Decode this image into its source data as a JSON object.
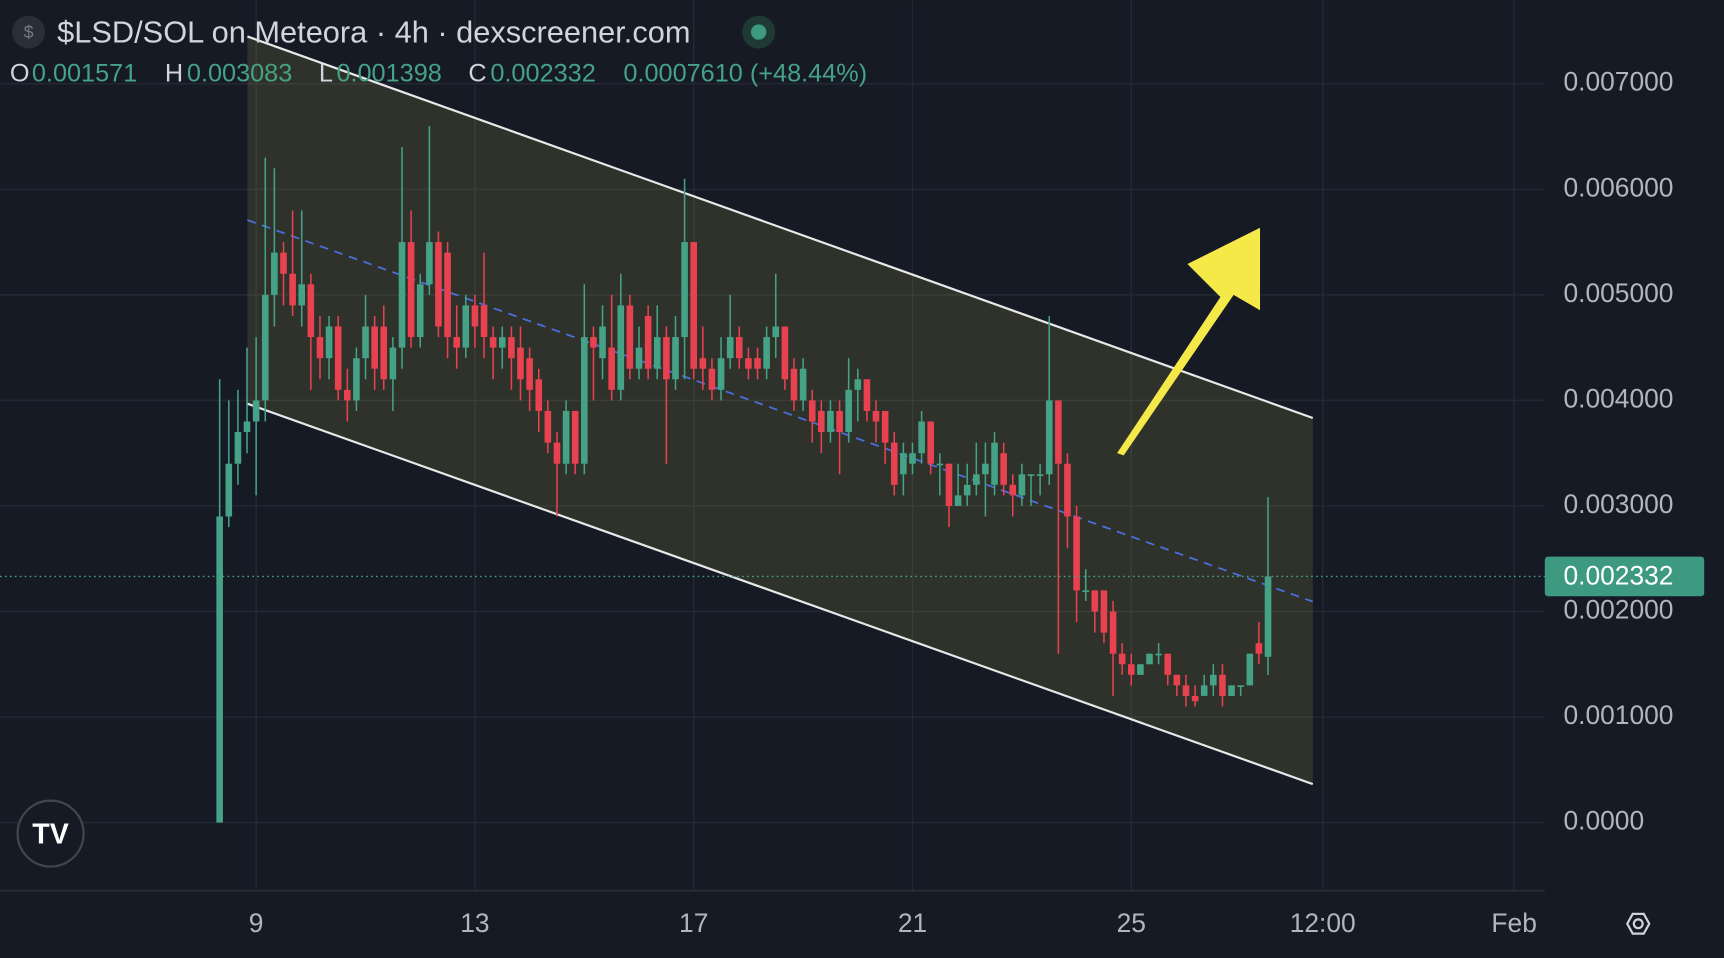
{
  "chart_data": {
    "type": "candlestick",
    "title": "$LSD/SOL on Meteora · 4h · dexscreener.com",
    "ohlc_labels": [
      "O",
      "H",
      "L",
      "C"
    ],
    "change_label": "0.0007610 (+48.44%)",
    "up_color": "#45a287",
    "down_color": "#e8414f",
    "grid": true,
    "xlim": [
      4.317,
      32.56
    ],
    "xticks": [
      9,
      13,
      17,
      21,
      25,
      {
        "value": 28.5,
        "label": "12:00"
      },
      {
        "value": 32,
        "label": "Feb"
      }
    ],
    "ylim": [
      -0.000646,
      0.007792
    ],
    "yticks": [
      {
        "value": 0,
        "label": "0.0000"
      },
      {
        "value": 0.001,
        "label": "0.001000"
      },
      {
        "value": 0.002,
        "label": "0.002000"
      },
      {
        "value": 0.003,
        "label": "0.003000"
      },
      {
        "value": 0.004,
        "label": "0.004000"
      },
      {
        "value": 0.005,
        "label": "0.005000"
      },
      {
        "value": 0.006,
        "label": "0.006000"
      },
      {
        "value": 0.007,
        "label": "0.007000"
      }
    ],
    "x": [
      8.333,
      8.5,
      8.667,
      8.833,
      9,
      9.167,
      9.333,
      9.5,
      9.667,
      9.833,
      10,
      10.167,
      10.333,
      10.5,
      10.667,
      10.833,
      11,
      11.167,
      11.333,
      11.5,
      11.667,
      11.833,
      12,
      12.167,
      12.333,
      12.5,
      12.667,
      12.833,
      13,
      13.167,
      13.333,
      13.5,
      13.667,
      13.833,
      14,
      14.167,
      14.333,
      14.5,
      14.667,
      14.833,
      15,
      15.167,
      15.333,
      15.5,
      15.667,
      15.833,
      16,
      16.167,
      16.333,
      16.5,
      16.667,
      16.833,
      17,
      17.167,
      17.333,
      17.5,
      17.667,
      17.833,
      18,
      18.167,
      18.333,
      18.5,
      18.667,
      18.833,
      19,
      19.167,
      19.333,
      19.5,
      19.667,
      19.833,
      20,
      20.167,
      20.333,
      20.5,
      20.667,
      20.833,
      21,
      21.167,
      21.333,
      21.5,
      21.667,
      21.833,
      22,
      22.167,
      22.333,
      22.5,
      22.667,
      22.833,
      23,
      23.167,
      23.333,
      23.5,
      23.667,
      23.833,
      24,
      24.167,
      24.333,
      24.5,
      24.667,
      24.833,
      25,
      25.167,
      25.333,
      25.5,
      25.667,
      25.833,
      26,
      26.167,
      26.333,
      26.5,
      26.667,
      26.833,
      27,
      27.167,
      27.333,
      27.5
    ],
    "open": [
      0,
      0.0029,
      0.0034,
      0.0037,
      0.0038,
      0.004,
      0.005,
      0.0054,
      0.0052,
      0.0049,
      0.0051,
      0.0046,
      0.0044,
      0.0047,
      0.0041,
      0.004,
      0.0044,
      0.0047,
      0.0047,
      0.0042,
      0.0045,
      0.0055,
      0.0046,
      0.0051,
      0.0055,
      0.0054,
      0.0046,
      0.0045,
      0.0049,
      0.0049,
      0.0046,
      0.0045,
      0.0046,
      0.0045,
      0.0044,
      0.0042,
      0.0039,
      0.0036,
      0.0034,
      0.0039,
      0.0034,
      0.0046,
      0.0044,
      0.0045,
      0.0041,
      0.0049,
      0.0043,
      0.0048,
      0.0043,
      0.0046,
      0.0042,
      0.0046,
      0.0055,
      0.0044,
      0.0043,
      0.0041,
      0.0044,
      0.0046,
      0.0044,
      0.0044,
      0.0043,
      0.0046,
      0.0047,
      0.0043,
      0.004,
      0.004,
      0.0039,
      0.0037,
      0.0039,
      0.0037,
      0.0041,
      0.0042,
      0.0039,
      0.0039,
      0.0036,
      0.0033,
      0.0034,
      0.0035,
      0.0038,
      0.0034,
      0.0034,
      0.003,
      0.0031,
      0.0032,
      0.0033,
      0.0032,
      0.0035,
      0.0032,
      0.0031,
      0.0033,
      0.0033,
      0.0033,
      0.004,
      0.0034,
      0.0029,
      0.0022,
      0.0022,
      0.0022,
      0.002,
      0.0016,
      0.0015,
      0.0014,
      0.0015,
      0.0016,
      0.0016,
      0.0014,
      0.0013,
      0.0012,
      0.0012,
      0.0013,
      0.0014,
      0.0012,
      0.0013,
      0.0013,
      0.0017,
      0.001571
    ],
    "high": [
      0.0042,
      0.004,
      0.0041,
      0.0045,
      0.0046,
      0.0063,
      0.0062,
      0.0055,
      0.0058,
      0.0058,
      0.0052,
      0.0048,
      0.0048,
      0.0048,
      0.0043,
      0.0045,
      0.005,
      0.0048,
      0.0049,
      0.0046,
      0.0064,
      0.0058,
      0.0052,
      0.0066,
      0.0056,
      0.0055,
      0.0049,
      0.005,
      0.005,
      0.0054,
      0.0047,
      0.0047,
      0.0047,
      0.0047,
      0.0045,
      0.0043,
      0.004,
      0.0037,
      0.004,
      0.0039,
      0.0051,
      0.0047,
      0.0049,
      0.005,
      0.0052,
      0.005,
      0.0047,
      0.0049,
      0.0049,
      0.0047,
      0.0048,
      0.0061,
      0.0055,
      0.0047,
      0.0044,
      0.0046,
      0.005,
      0.0047,
      0.0045,
      0.0045,
      0.0047,
      0.0052,
      0.0047,
      0.0044,
      0.0044,
      0.0041,
      0.004,
      0.004,
      0.004,
      0.0044,
      0.0043,
      0.0042,
      0.004,
      0.0039,
      0.0037,
      0.0036,
      0.0036,
      0.0039,
      0.0038,
      0.0035,
      0.0034,
      0.0034,
      0.0034,
      0.0036,
      0.0036,
      0.0037,
      0.0036,
      0.0033,
      0.0034,
      0.0033,
      0.0034,
      0.0048,
      0.004,
      0.0035,
      0.003,
      0.0024,
      0.0022,
      0.0022,
      0.0021,
      0.0017,
      0.0016,
      0.0015,
      0.0016,
      0.0017,
      0.0016,
      0.0014,
      0.0014,
      0.0013,
      0.0014,
      0.0015,
      0.0015,
      0.0013,
      0.0013,
      0.0016,
      0.0019,
      0.003083
    ],
    "low": [
      0,
      0.0028,
      0.0032,
      0.0035,
      0.0031,
      0.0038,
      0.0047,
      0.0049,
      0.0048,
      0.0047,
      0.0041,
      0.0042,
      0.0042,
      0.004,
      0.0038,
      0.0039,
      0.0042,
      0.0041,
      0.0041,
      0.0039,
      0.0043,
      0.0045,
      0.0045,
      0.005,
      0.0046,
      0.0044,
      0.0043,
      0.0044,
      0.0045,
      0.0044,
      0.0042,
      0.0043,
      0.0041,
      0.004,
      0.0039,
      0.0037,
      0.0035,
      0.0029,
      0.0033,
      0.0033,
      0.0033,
      0.004,
      0.0042,
      0.004,
      0.004,
      0.0042,
      0.0042,
      0.0042,
      0.0042,
      0.0034,
      0.0041,
      0.0042,
      0.0042,
      0.0041,
      0.004,
      0.004,
      0.0043,
      0.0043,
      0.0042,
      0.0042,
      0.0042,
      0.0044,
      0.0041,
      0.0039,
      0.0039,
      0.0036,
      0.0035,
      0.0036,
      0.0033,
      0.0036,
      0.0038,
      0.0038,
      0.0036,
      0.0034,
      0.0031,
      0.0031,
      0.0033,
      0.0034,
      0.0033,
      0.0031,
      0.0028,
      0.003,
      0.003,
      0.0031,
      0.0029,
      0.0031,
      0.0031,
      0.0029,
      0.003,
      0.003,
      0.0031,
      0.0032,
      0.0016,
      0.0026,
      0.0019,
      0.0021,
      0.0018,
      0.0017,
      0.0012,
      0.0014,
      0.0013,
      0.0014,
      0.0015,
      0.0015,
      0.0013,
      0.0012,
      0.0011,
      0.0011,
      0.0012,
      0.0012,
      0.0011,
      0.0012,
      0.0012,
      0.0013,
      0.0015,
      0.001398
    ],
    "close": [
      0.0029,
      0.0034,
      0.0037,
      0.0038,
      0.004,
      0.005,
      0.0054,
      0.0052,
      0.0049,
      0.0051,
      0.0046,
      0.0044,
      0.0047,
      0.0041,
      0.004,
      0.0044,
      0.0047,
      0.0043,
      0.0042,
      0.0045,
      0.0055,
      0.0046,
      0.0051,
      0.0055,
      0.0047,
      0.0046,
      0.0045,
      0.0049,
      0.0047,
      0.0046,
      0.0045,
      0.0046,
      0.0044,
      0.0042,
      0.0041,
      0.0039,
      0.0036,
      0.0034,
      0.0039,
      0.0034,
      0.0046,
      0.0045,
      0.0047,
      0.0041,
      0.0049,
      0.0043,
      0.0045,
      0.0043,
      0.0046,
      0.0042,
      0.0046,
      0.0055,
      0.0043,
      0.0043,
      0.0041,
      0.0044,
      0.0046,
      0.0044,
      0.0043,
      0.0043,
      0.0046,
      0.0047,
      0.0042,
      0.004,
      0.0043,
      0.0038,
      0.0037,
      0.0039,
      0.0037,
      0.0041,
      0.0042,
      0.0039,
      0.0038,
      0.0036,
      0.0032,
      0.0035,
      0.0035,
      0.0038,
      0.0034,
      0.0034,
      0.003,
      0.0031,
      0.0032,
      0.0033,
      0.0034,
      0.0036,
      0.0032,
      0.0031,
      0.0033,
      0.0033,
      0.0033,
      0.004,
      0.0034,
      0.0029,
      0.0022,
      0.0022,
      0.002,
      0.0018,
      0.0016,
      0.0015,
      0.0014,
      0.0015,
      0.0016,
      0.0016,
      0.0014,
      0.0013,
      0.0012,
      0.00115,
      0.0013,
      0.0014,
      0.0012,
      0.0013,
      0.0013,
      0.0016,
      0.0016,
      0.002332
    ]
  }
}
